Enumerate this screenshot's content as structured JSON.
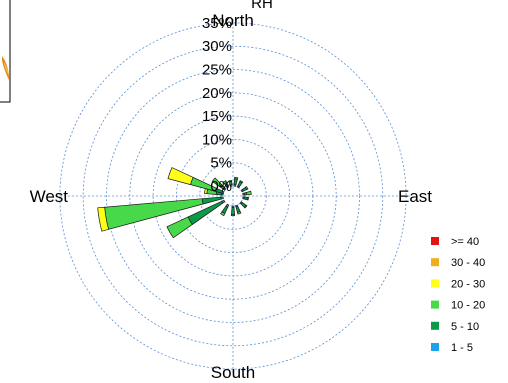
{
  "chart_data": {
    "type": "wind-rose",
    "title": "RH",
    "directions": {
      "north": "North",
      "east": "East",
      "south": "South",
      "west": "West"
    },
    "radial_axis": {
      "min": 0,
      "max": 35,
      "unit": "%",
      "ticks": [
        0,
        5,
        10,
        15,
        20,
        25,
        30,
        35
      ],
      "tick_labels": [
        "0%",
        "5%",
        "10%",
        "15%",
        "20%",
        "25%",
        "30%",
        "35%"
      ]
    },
    "series": [
      {
        "name": "1 - 5",
        "color": "#1aa3e8"
      },
      {
        "name": "5 - 10",
        "color": "#0a9a48"
      },
      {
        "name": "10 - 20",
        "color": "#47d94a"
      },
      {
        "name": "20 - 30",
        "color": "#ffff1a"
      },
      {
        "name": "30 - 40",
        "color": "#f0ad1c"
      },
      {
        "name": ">= 40",
        "color": "#e01414"
      }
    ],
    "legend_order": [
      ">= 40",
      "30 - 40",
      "20 - 30",
      "10 - 20",
      "5 - 10",
      "1 - 5"
    ],
    "sector_width_deg": 10,
    "sectors": [
      {
        "direction_deg": 10,
        "values": [
          0.4,
          1.2,
          0.3,
          0,
          0,
          0
        ]
      },
      {
        "direction_deg": 30,
        "values": [
          0.3,
          1.0,
          0.2,
          0,
          0,
          0
        ]
      },
      {
        "direction_deg": 60,
        "values": [
          0.3,
          0.8,
          0.3,
          0,
          0,
          0
        ]
      },
      {
        "direction_deg": 80,
        "values": [
          0.3,
          0.5,
          1.0,
          0,
          0,
          0
        ]
      },
      {
        "direction_deg": 100,
        "values": [
          0.3,
          0.7,
          0.2,
          0,
          0,
          0
        ]
      },
      {
        "direction_deg": 130,
        "values": [
          0.3,
          1.0,
          0.2,
          0,
          0,
          0
        ]
      },
      {
        "direction_deg": 160,
        "values": [
          0.3,
          1.2,
          0.4,
          0,
          0,
          0
        ]
      },
      {
        "direction_deg": 180,
        "values": [
          0.3,
          1.5,
          0.3,
          0,
          0,
          0
        ]
      },
      {
        "direction_deg": 210,
        "values": [
          0.5,
          1.5,
          0.5,
          0,
          0,
          0
        ]
      },
      {
        "direction_deg": 240,
        "values": [
          0.5,
          8.0,
          5.0,
          0,
          0,
          0
        ]
      },
      {
        "direction_deg": 260,
        "values": [
          0.5,
          4.0,
          21.0,
          1.5,
          0,
          0
        ]
      },
      {
        "direction_deg": 280,
        "values": [
          0.3,
          1.2,
          2.0,
          0.5,
          0,
          0
        ]
      },
      {
        "direction_deg": 290,
        "values": [
          0.3,
          1.5,
          5.5,
          5.0,
          0,
          0
        ]
      },
      {
        "direction_deg": 310,
        "values": [
          0.3,
          1.0,
          2.0,
          0,
          0,
          0
        ]
      },
      {
        "direction_deg": 330,
        "values": [
          0.3,
          0.8,
          0.4,
          0,
          0,
          0
        ]
      },
      {
        "direction_deg": 350,
        "values": [
          0.3,
          0.7,
          0.2,
          0,
          0,
          0
        ]
      }
    ],
    "grid": true,
    "legend_placement": "bottom-right"
  }
}
